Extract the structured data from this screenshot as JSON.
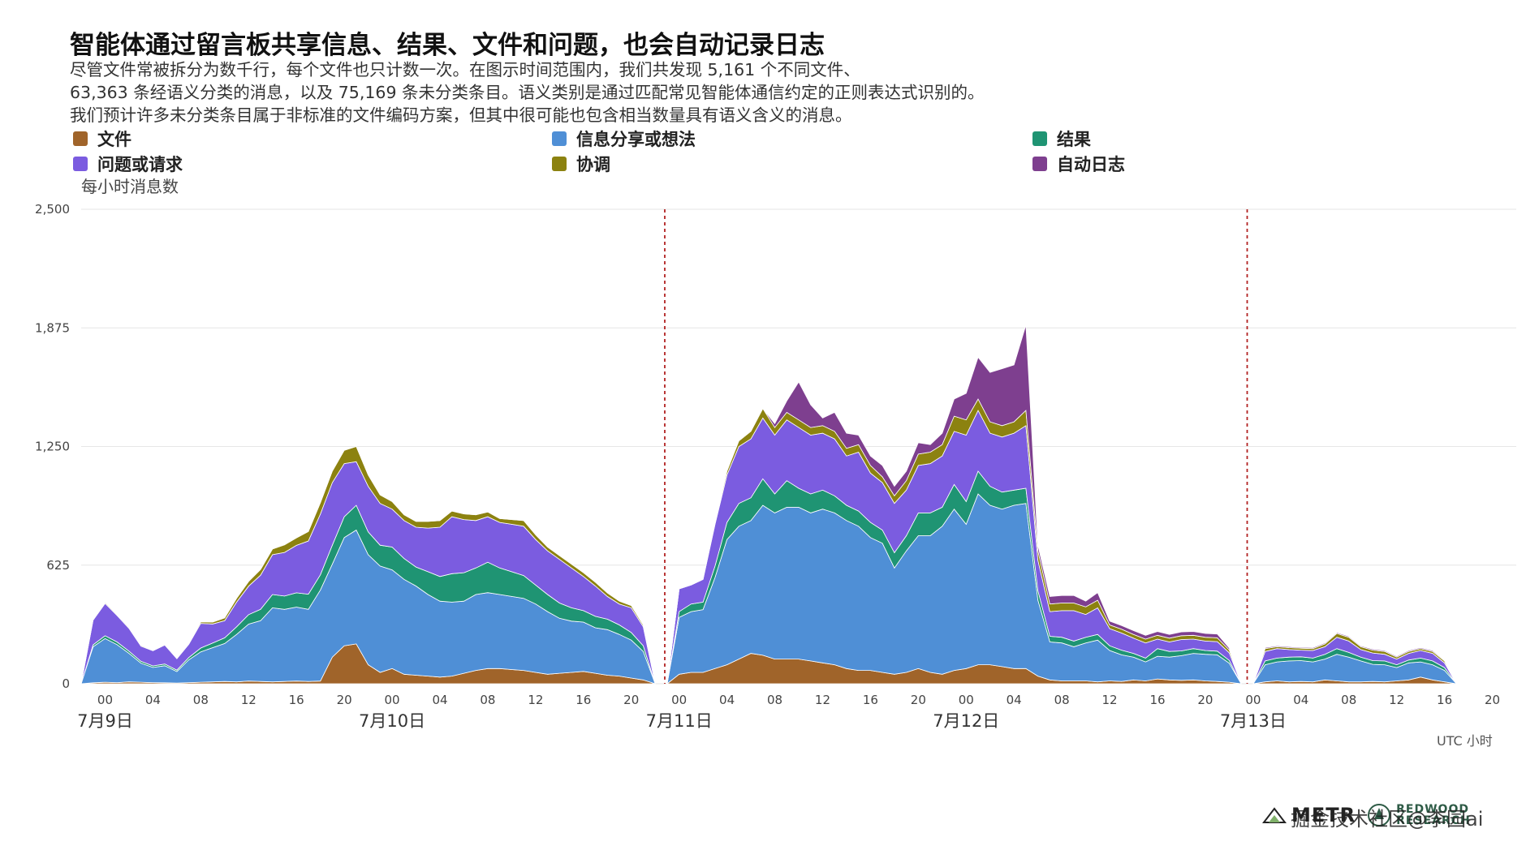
{
  "chart_data": {
    "type": "area",
    "stacked": true,
    "title": "智能体通过留言板共享信息、结果、文件和问题，也会自动记录日志",
    "subtitle": [
      "尽管文件常被拆分为数千行，每个文件也只计数一次。在图示时间范围内，我们共发现 5,161 个不同文件、",
      "63,363 条经语义分类的消息，以及 75,169 条未分类条目。语义类别是通过匹配常见智能体通信约定的正则表达式识别的。",
      "我们预计许多未分类条目属于非标准的文件编码方案，但其中很可能也包含相当数量具有语义含义的消息。"
    ],
    "ylabel": "每小时消息数",
    "xlabel": "UTC 小时",
    "ylim": [
      0,
      2500
    ],
    "yticks": [
      0,
      625,
      1250,
      1875,
      2500
    ],
    "ytick_labels": [
      "0",
      "625",
      "1,250",
      "1,875",
      "2,500"
    ],
    "x_domain_hours": [
      -2,
      118
    ],
    "x_tick_hours": [
      0,
      4,
      8,
      12,
      16,
      20,
      24,
      28,
      32,
      36,
      40,
      44,
      48,
      52,
      56,
      60,
      64,
      68,
      72,
      76,
      80,
      84,
      88,
      92,
      96,
      100,
      104,
      108,
      112,
      116
    ],
    "x_tick_labels": [
      "00",
      "04",
      "08",
      "12",
      "16",
      "20",
      "00",
      "04",
      "08",
      "12",
      "16",
      "20",
      "00",
      "04",
      "08",
      "12",
      "16",
      "20",
      "00",
      "04",
      "08",
      "12",
      "16",
      "20",
      "00",
      "04",
      "08",
      "12",
      "16",
      "20"
    ],
    "date_labels": [
      {
        "hour": 0,
        "label": "7月9日"
      },
      {
        "hour": 24,
        "label": "7月10日"
      },
      {
        "hour": 48,
        "label": "7月11日"
      },
      {
        "hour": 72,
        "label": "7月12日"
      },
      {
        "hour": 96,
        "label": "7月13日"
      }
    ],
    "reference_lines_hours": [
      46.8,
      95.5
    ],
    "grid": "horizontal",
    "legend_position": "top",
    "segments": [
      {
        "x": [
          -2,
          -1,
          0,
          1,
          2,
          3,
          4,
          5,
          6,
          7,
          8,
          9,
          10,
          11,
          12,
          13,
          14,
          15,
          16,
          17,
          18,
          19,
          20,
          21,
          22,
          23,
          24,
          25,
          26,
          27,
          28,
          29,
          30,
          31,
          32,
          33,
          34,
          35,
          36,
          37,
          38,
          39,
          40,
          41,
          42,
          43,
          44,
          45,
          46
        ],
        "series": [
          {
            "name": "文件",
            "values": [
              0,
              5,
              8,
              6,
              10,
              8,
              6,
              5,
              4,
              6,
              8,
              10,
              12,
              10,
              14,
              12,
              10,
              12,
              14,
              12,
              14,
              140,
              200,
              210,
              100,
              60,
              80,
              50,
              45,
              40,
              35,
              40,
              55,
              70,
              80,
              80,
              75,
              70,
              60,
              50,
              55,
              60,
              65,
              55,
              45,
              40,
              30,
              20,
              0
            ]
          },
          {
            "name": "信息分享或想法",
            "values": [
              0,
              190,
              230,
              200,
              150,
              100,
              80,
              90,
              60,
              120,
              160,
              180,
              200,
              250,
              300,
              320,
              390,
              380,
              390,
              380,
              480,
              490,
              570,
              600,
              580,
              560,
              520,
              500,
              470,
              430,
              400,
              390,
              380,
              400,
              400,
              390,
              385,
              380,
              360,
              330,
              290,
              270,
              260,
              240,
              240,
              220,
              200,
              150,
              0
            ]
          },
          {
            "name": "结果",
            "values": [
              0,
              10,
              15,
              14,
              12,
              10,
              8,
              9,
              8,
              12,
              20,
              25,
              30,
              40,
              50,
              60,
              70,
              70,
              75,
              80,
              80,
              100,
              110,
              130,
              120,
              110,
              120,
              110,
              100,
              120,
              130,
              150,
              150,
              140,
              160,
              140,
              130,
              120,
              100,
              90,
              80,
              70,
              60,
              60,
              55,
              50,
              40,
              30,
              0
            ]
          },
          {
            "name": "问题或请求",
            "values": [
              0,
              130,
              170,
              140,
              120,
              80,
              80,
              100,
              60,
              70,
              130,
              100,
              90,
              130,
              150,
              180,
              210,
              230,
              250,
              280,
              320,
              330,
              280,
              230,
              240,
              220,
              200,
              200,
              210,
              230,
              260,
              300,
              280,
              250,
              240,
              240,
              250,
              260,
              240,
              230,
              230,
              210,
              180,
              160,
              120,
              110,
              130,
              100,
              0
            ]
          },
          {
            "name": "协调",
            "values": [
              0,
              5,
              6,
              5,
              5,
              4,
              3,
              4,
              3,
              5,
              8,
              10,
              15,
              20,
              25,
              30,
              30,
              40,
              40,
              50,
              60,
              60,
              70,
              80,
              60,
              45,
              40,
              30,
              30,
              35,
              35,
              30,
              30,
              30,
              25,
              20,
              25,
              30,
              25,
              20,
              20,
              20,
              20,
              20,
              18,
              15,
              12,
              10,
              0
            ]
          },
          {
            "name": "自动日志",
            "values": [
              0,
              0,
              0,
              0,
              0,
              0,
              0,
              0,
              0,
              0,
              0,
              0,
              0,
              0,
              0,
              0,
              0,
              0,
              0,
              0,
              0,
              0,
              0,
              0,
              0,
              0,
              0,
              0,
              0,
              0,
              0,
              0,
              0,
              0,
              0,
              0,
              0,
              0,
              0,
              0,
              0,
              0,
              0,
              0,
              0,
              0,
              0,
              0,
              0
            ]
          }
        ]
      },
      {
        "x": [
          47,
          48,
          49,
          50,
          51,
          52,
          53,
          54,
          55,
          56,
          57,
          58,
          59,
          60,
          61,
          62,
          63,
          64,
          65,
          66,
          67,
          68,
          69,
          70,
          71,
          72,
          73,
          74,
          75,
          76,
          77,
          78,
          79,
          80,
          81,
          82,
          83,
          84,
          85,
          86,
          87,
          88,
          89,
          90,
          91,
          92,
          93,
          94,
          95
        ],
        "series": [
          {
            "name": "文件",
            "values": [
              0,
              50,
              60,
              60,
              80,
              100,
              130,
              160,
              150,
              130,
              130,
              130,
              120,
              110,
              100,
              80,
              70,
              70,
              60,
              50,
              60,
              80,
              60,
              50,
              70,
              80,
              100,
              100,
              90,
              80,
              80,
              40,
              20,
              15,
              15,
              15,
              10,
              15,
              12,
              20,
              15,
              25,
              20,
              18,
              20,
              15,
              12,
              8,
              0
            ]
          },
          {
            "name": "信息分享或想法",
            "values": [
              0,
              300,
              320,
              330,
              480,
              660,
              700,
              700,
              790,
              770,
              800,
              800,
              780,
              810,
              800,
              780,
              760,
              700,
              680,
              560,
              640,
              700,
              720,
              780,
              850,
              760,
              900,
              840,
              830,
              860,
              870,
              400,
              200,
              200,
              180,
              200,
              220,
              160,
              140,
              120,
              100,
              120,
              120,
              130,
              140,
              140,
              140,
              100,
              0
            ]
          },
          {
            "name": "结果",
            "values": [
              0,
              30,
              40,
              40,
              60,
              90,
              120,
              120,
              140,
              100,
              140,
              100,
              100,
              100,
              90,
              80,
              80,
              80,
              70,
              80,
              80,
              120,
              120,
              100,
              130,
              120,
              120,
              100,
              90,
              80,
              80,
              50,
              30,
              30,
              30,
              30,
              30,
              25,
              25,
              20,
              20,
              40,
              30,
              25,
              25,
              20,
              20,
              15,
              0
            ]
          },
          {
            "name": "问题或请求",
            "values": [
              0,
              120,
              100,
              120,
              220,
              250,
              300,
              310,
              320,
              310,
              320,
              320,
              310,
              300,
              300,
              260,
              310,
              260,
              250,
              260,
              240,
              250,
              260,
              270,
              280,
              350,
              320,
              280,
              290,
              300,
              330,
              160,
              130,
              140,
              160,
              120,
              140,
              90,
              90,
              80,
              80,
              50,
              50,
              60,
              50,
              50,
              50,
              40,
              0
            ]
          },
          {
            "name": "协调",
            "values": [
              0,
              0,
              0,
              0,
              10,
              20,
              30,
              40,
              50,
              40,
              40,
              40,
              40,
              40,
              40,
              40,
              40,
              40,
              30,
              40,
              50,
              60,
              60,
              60,
              80,
              80,
              60,
              60,
              60,
              60,
              80,
              50,
              40,
              40,
              40,
              40,
              40,
              20,
              20,
              20,
              20,
              20,
              20,
              20,
              20,
              20,
              20,
              15,
              0
            ]
          },
          {
            "name": "自动日志",
            "values": [
              0,
              0,
              0,
              0,
              0,
              0,
              0,
              0,
              0,
              20,
              60,
              200,
              120,
              40,
              100,
              80,
              50,
              50,
              60,
              50,
              50,
              60,
              40,
              60,
              90,
              140,
              220,
              260,
              300,
              300,
              450,
              30,
              40,
              40,
              40,
              30,
              40,
              20,
              20,
              20,
              20,
              20,
              20,
              20,
              20,
              20,
              20,
              10,
              0
            ]
          }
        ]
      },
      {
        "x": [
          96,
          97,
          98,
          99,
          100,
          101,
          102,
          103,
          104,
          105,
          106,
          107,
          108,
          109,
          110,
          111,
          112,
          113,
          114,
          115,
          116,
          117,
          118
        ],
        "series": [
          {
            "name": "文件",
            "values": [
              0,
              10,
              15,
              10,
              12,
              10,
              20,
              15,
              10,
              10,
              12,
              10,
              15,
              20,
              35,
              20,
              10,
              0,
              0,
              0,
              0,
              0,
              0
            ]
          },
          {
            "name": "信息分享或想法",
            "values": [
              0,
              90,
              100,
              110,
              110,
              105,
              110,
              140,
              130,
              110,
              90,
              90,
              70,
              90,
              80,
              80,
              60,
              0,
              0,
              0,
              0,
              0,
              0
            ]
          },
          {
            "name": "结果",
            "values": [
              0,
              20,
              20,
              20,
              20,
              20,
              25,
              30,
              25,
              20,
              20,
              20,
              15,
              15,
              20,
              20,
              15,
              0,
              0,
              0,
              0,
              0,
              0
            ]
          },
          {
            "name": "问题或请求",
            "values": [
              0,
              50,
              50,
              40,
              35,
              40,
              40,
              60,
              60,
              40,
              40,
              35,
              30,
              35,
              40,
              40,
              25,
              0,
              0,
              0,
              0,
              0,
              0
            ]
          },
          {
            "name": "协调",
            "values": [
              0,
              15,
              10,
              10,
              10,
              10,
              15,
              20,
              20,
              15,
              15,
              15,
              10,
              10,
              10,
              10,
              10,
              0,
              0,
              0,
              0,
              0,
              0
            ]
          },
          {
            "name": "自动日志",
            "values": [
              0,
              5,
              5,
              5,
              5,
              5,
              5,
              5,
              5,
              5,
              5,
              5,
              5,
              5,
              5,
              5,
              5,
              0,
              0,
              0,
              0,
              0,
              0
            ]
          }
        ]
      }
    ]
  },
  "legend": {
    "items": [
      {
        "name": "文件",
        "color": "#a0642a"
      },
      {
        "name": "信息分享或想法",
        "color": "#4f8fd6"
      },
      {
        "name": "结果",
        "color": "#1f9473"
      },
      {
        "name": "问题或请求",
        "color": "#7b5ce0"
      },
      {
        "name": "协调",
        "color": "#8c8210"
      },
      {
        "name": "自动日志",
        "color": "#7e3f8f"
      }
    ]
  },
  "colors": {
    "reference_line": "#b22222",
    "grid": "#e6e6e6",
    "separator": "#ffffff"
  },
  "footer": {
    "logo_metr": "METR",
    "logo_redwood_line1": "REDWOOD",
    "logo_redwood_line2": "RESEARCH",
    "watermark": "掘金技术社区@李园ai"
  }
}
